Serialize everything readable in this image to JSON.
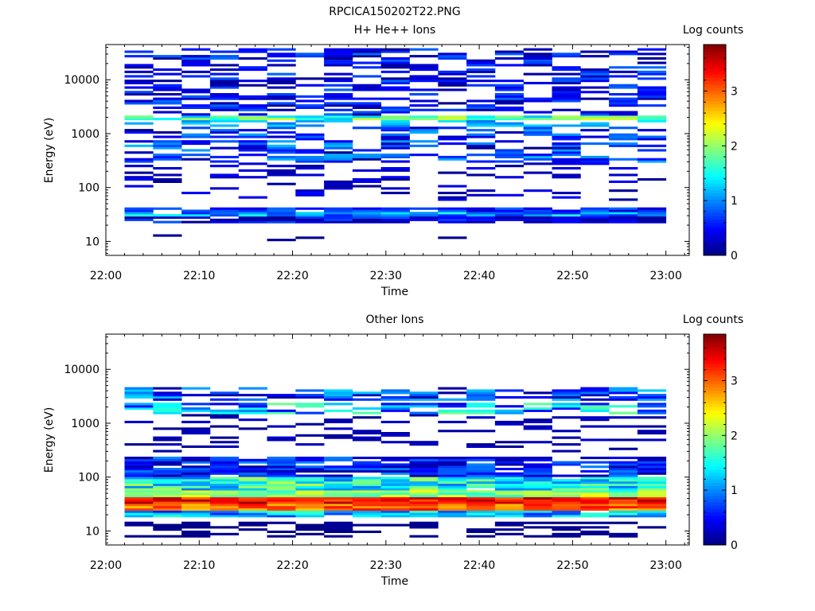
{
  "figure_title": "RPCICA150202T22.PNG",
  "chart_data": [
    {
      "type": "heatmap",
      "title": "H+ He++ Ions",
      "xlabel": "Time",
      "ylabel": "Energy (eV)",
      "y_scale": "log",
      "ylim": [
        5.5,
        45000
      ],
      "x_ticks": [
        "22:00",
        "22:10",
        "22:20",
        "22:30",
        "22:40",
        "22:50",
        "23:00"
      ],
      "y_ticks": [
        10,
        100,
        1000,
        10000
      ],
      "y_tick_labels": [
        "10",
        "100",
        "1000",
        "10000"
      ],
      "colorbar": {
        "label": "Log counts",
        "range": [
          0,
          3.85
        ],
        "ticks": [
          0,
          1,
          2,
          3
        ]
      },
      "time_bins": 19,
      "seed": 7,
      "profile": [
        {
          "e": 8000,
          "band": 0.9,
          "density": 0.45,
          "level": [
            0.05,
            0.9
          ]
        },
        {
          "e": 600,
          "band": 0.55,
          "density": 0.42,
          "level": [
            0.05,
            1.2
          ]
        },
        {
          "e": 150,
          "band": 0.4,
          "density": 0.22,
          "level": [
            0.05,
            0.5
          ]
        },
        {
          "e": 1850,
          "band": 0.06,
          "density": 0.95,
          "level": [
            1.2,
            2.3
          ]
        },
        {
          "e": 1600,
          "band": 0.04,
          "density": 0.4,
          "level": [
            0.8,
            1.4
          ]
        },
        {
          "e": 34,
          "band": 0.05,
          "density": 0.98,
          "level": [
            0.6,
            1.6
          ]
        },
        {
          "e": 39,
          "band": 0.03,
          "density": 0.9,
          "level": [
            0.3,
            0.9
          ]
        },
        {
          "e": 25,
          "band": 0.05,
          "density": 0.9,
          "level": [
            0.05,
            0.8
          ]
        },
        {
          "e": 12,
          "band": 0.05,
          "density": 0.06,
          "level": [
            0.02,
            0.1
          ]
        }
      ]
    },
    {
      "type": "heatmap",
      "title": "Other Ions",
      "xlabel": "Time",
      "ylabel": "Energy (eV)",
      "y_scale": "log",
      "ylim": [
        5.5,
        45000
      ],
      "x_ticks": [
        "22:00",
        "22:10",
        "22:20",
        "22:30",
        "22:40",
        "22:50",
        "23:00"
      ],
      "y_ticks": [
        10,
        100,
        1000,
        10000
      ],
      "y_tick_labels": [
        "10",
        "100",
        "1000",
        "10000"
      ],
      "colorbar": {
        "label": "Log counts",
        "range": [
          0,
          3.85
        ],
        "ticks": [
          0,
          1,
          2,
          3
        ]
      },
      "time_bins": 19,
      "seed": 23,
      "profile": [
        {
          "e": 3500,
          "band": 0.12,
          "density": 0.55,
          "level": [
            0.1,
            1.4
          ]
        },
        {
          "e": 1900,
          "band": 0.08,
          "density": 0.7,
          "level": [
            0.3,
            1.9
          ]
        },
        {
          "e": 700,
          "band": 0.35,
          "density": 0.25,
          "level": [
            0.05,
            0.3
          ]
        },
        {
          "e": 150,
          "band": 0.18,
          "density": 0.85,
          "level": [
            0.1,
            1.0
          ]
        },
        {
          "e": 75,
          "band": 0.15,
          "density": 0.98,
          "level": [
            0.9,
            2.2
          ]
        },
        {
          "e": 48,
          "band": 0.06,
          "density": 1.0,
          "level": [
            1.5,
            2.4
          ]
        },
        {
          "e": 35,
          "band": 0.05,
          "density": 1.0,
          "level": [
            3.0,
            3.75
          ]
        },
        {
          "e": 28,
          "band": 0.04,
          "density": 1.0,
          "level": [
            2.6,
            3.4
          ]
        },
        {
          "e": 20,
          "band": 0.04,
          "density": 0.95,
          "level": [
            0.6,
            1.7
          ]
        },
        {
          "e": 13,
          "band": 0.05,
          "density": 0.45,
          "level": [
            0.0,
            0.1
          ]
        },
        {
          "e": 9,
          "band": 0.06,
          "density": 0.4,
          "level": [
            0.0,
            0.1
          ]
        }
      ]
    }
  ]
}
